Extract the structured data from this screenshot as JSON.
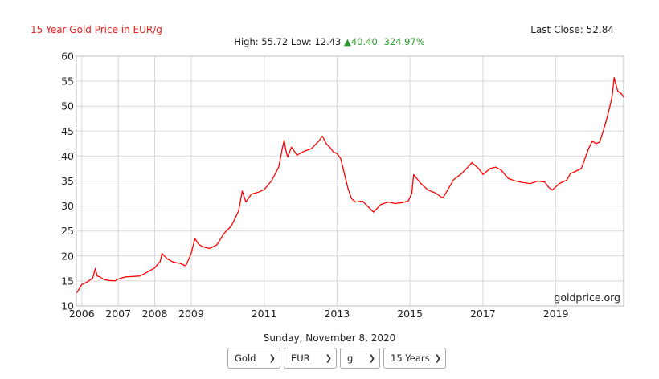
{
  "header": {
    "title": "15 Year Gold Price in EUR/g",
    "last_close_label": "Last Close:",
    "last_close_value": "52.84",
    "high_label": "High:",
    "high_value": "55.72",
    "low_label": "Low:",
    "low_value": "12.43",
    "change_arrow": "▲",
    "change_value": "40.40",
    "change_pct": "324.97%",
    "colors": {
      "title": "#e8201e",
      "line": "#ff0000",
      "up": "#2a9a2a",
      "grid": "#d9d9d9"
    }
  },
  "watermark": "goldprice.org",
  "date_label": "Sunday, November 8, 2020",
  "controls": [
    {
      "value": "Gold",
      "icon": "chevron-down-icon"
    },
    {
      "value": "EUR",
      "icon": "chevron-down-icon"
    },
    {
      "value": "g",
      "icon": "chevron-down-icon"
    },
    {
      "value": "15 Years",
      "icon": "chevron-down-icon"
    }
  ],
  "chart_data": {
    "type": "line",
    "title": "15 Year Gold Price in EUR/g",
    "xlabel": "",
    "ylabel": "",
    "ylim": [
      10,
      60
    ],
    "xlim": [
      2005.85,
      2020.86
    ],
    "y_ticks": [
      10,
      15,
      20,
      25,
      30,
      35,
      40,
      45,
      50,
      55,
      60
    ],
    "x_ticks": [
      2006,
      2007,
      2008,
      2009,
      2011,
      2013,
      2015,
      2017,
      2019
    ],
    "grid": true,
    "legend": "none",
    "series": [
      {
        "x": [
          2005.86,
          2006.0,
          2006.15,
          2006.3,
          2006.37,
          2006.42,
          2006.5,
          2006.6,
          2006.75,
          2006.9,
          2007.0,
          2007.2,
          2007.4,
          2007.6,
          2007.8,
          2008.0,
          2008.15,
          2008.2,
          2008.35,
          2008.5,
          2008.7,
          2008.85,
          2009.0,
          2009.1,
          2009.2,
          2009.3,
          2009.5,
          2009.7,
          2009.9,
          2010.1,
          2010.3,
          2010.4,
          2010.5,
          2010.65,
          2010.85,
          2011.0,
          2011.2,
          2011.4,
          2011.5,
          2011.55,
          2011.6,
          2011.65,
          2011.75,
          2011.9,
          2012.1,
          2012.3,
          2012.5,
          2012.6,
          2012.7,
          2012.8,
          2012.9,
          2013.0,
          2013.1,
          2013.2,
          2013.3,
          2013.4,
          2013.5,
          2013.7,
          2013.9,
          2014.0,
          2014.2,
          2014.4,
          2014.6,
          2014.8,
          2014.95,
          2015.05,
          2015.1,
          2015.3,
          2015.5,
          2015.7,
          2015.9,
          2016.0,
          2016.2,
          2016.4,
          2016.55,
          2016.7,
          2016.9,
          2017.0,
          2017.2,
          2017.35,
          2017.5,
          2017.7,
          2017.9,
          2018.1,
          2018.3,
          2018.5,
          2018.7,
          2018.8,
          2018.9,
          2019.1,
          2019.3,
          2019.4,
          2019.55,
          2019.7,
          2019.9,
          2020.0,
          2020.1,
          2020.2,
          2020.3,
          2020.4,
          2020.5,
          2020.55,
          2020.6,
          2020.7,
          2020.8,
          2020.86
        ],
        "values": [
          12.6,
          14.3,
          14.8,
          15.6,
          17.5,
          16.0,
          15.8,
          15.3,
          15.1,
          15.0,
          15.4,
          15.8,
          15.9,
          16.0,
          16.8,
          17.6,
          18.9,
          20.5,
          19.4,
          18.8,
          18.5,
          18.0,
          20.5,
          23.5,
          22.4,
          21.9,
          21.5,
          22.2,
          24.5,
          26.0,
          29.0,
          33.0,
          30.8,
          32.4,
          32.8,
          33.3,
          35.0,
          37.8,
          41.5,
          43.2,
          41.0,
          39.8,
          41.8,
          40.2,
          41.0,
          41.5,
          43.0,
          44.0,
          42.5,
          41.8,
          40.8,
          40.5,
          39.5,
          36.5,
          33.5,
          31.5,
          30.8,
          31.0,
          29.5,
          28.8,
          30.3,
          30.8,
          30.5,
          30.7,
          31.0,
          32.5,
          36.3,
          34.5,
          33.2,
          32.6,
          31.6,
          32.8,
          35.3,
          36.4,
          37.5,
          38.7,
          37.4,
          36.3,
          37.5,
          37.8,
          37.2,
          35.5,
          35.0,
          34.7,
          34.5,
          35.0,
          34.8,
          33.8,
          33.2,
          34.5,
          35.2,
          36.5,
          37.0,
          37.5,
          41.5,
          43.0,
          42.5,
          42.8,
          45.0,
          47.5,
          50.5,
          52.2,
          55.7,
          53.0,
          52.5,
          51.8
        ]
      }
    ]
  }
}
